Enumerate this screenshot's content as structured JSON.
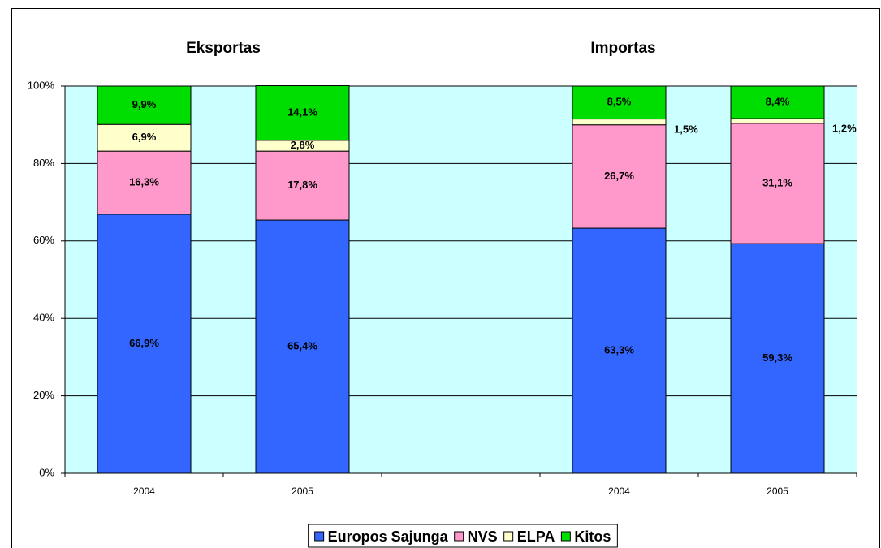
{
  "chart_data": {
    "type": "stacked_bar",
    "annotations": [
      "Eksportas",
      "Importas"
    ],
    "categories": [
      "2004",
      "2005",
      null,
      "2004",
      "2005"
    ],
    "series": [
      {
        "name": "Europos Sajunga",
        "color": "#3366ff",
        "values": [
          66.9,
          65.4,
          null,
          63.3,
          59.3
        ],
        "value_labels": [
          "66,9%",
          "65,4%",
          null,
          "63,3%",
          "59,3%"
        ]
      },
      {
        "name": "NVS",
        "color": "#ff99cc",
        "values": [
          16.3,
          17.8,
          null,
          26.7,
          31.1
        ],
        "value_labels": [
          "16,3%",
          "17,8%",
          null,
          "26,7%",
          "31,1%"
        ]
      },
      {
        "name": "ELPA",
        "color": "#ffffcc",
        "values": [
          6.9,
          2.8,
          null,
          1.5,
          1.2
        ],
        "value_labels": [
          "6,9%",
          "2,8%",
          null,
          "1,5%",
          "1,2%"
        ]
      },
      {
        "name": "Kitos",
        "color": "#00dd00",
        "values": [
          9.9,
          14.1,
          null,
          8.5,
          8.4
        ],
        "value_labels": [
          "9,9%",
          "14,1%",
          null,
          "8,5%",
          "8,4%"
        ]
      }
    ],
    "ylim": [
      0,
      100
    ],
    "yticks": [
      {
        "value": 0,
        "label": "0%"
      },
      {
        "value": 20,
        "label": "20%"
      },
      {
        "value": 40,
        "label": "40%"
      },
      {
        "value": 60,
        "label": "60%"
      },
      {
        "value": 80,
        "label": "80%"
      },
      {
        "value": 100,
        "label": "100%"
      }
    ],
    "grid": true,
    "legend": "bottom",
    "plot_background": "#ccffff"
  }
}
